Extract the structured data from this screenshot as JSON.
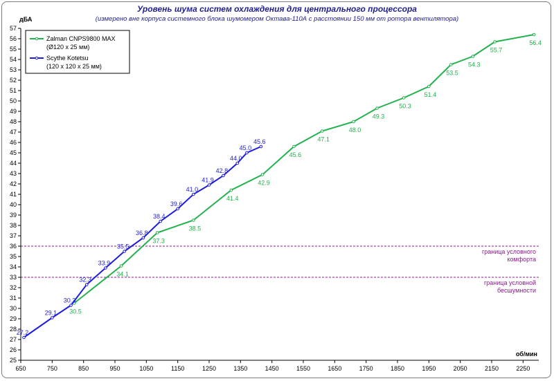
{
  "chart_data": {
    "type": "line",
    "title": "Уровень шума систем охлаждения для центрального процессора",
    "subtitle": "(измерено вне корпуса системного блока шумомером Октава-110А с расстоянии 150 мм от ротора вентилятора)",
    "xlabel": "об/мин",
    "ylabel": "дБА",
    "xlim": [
      650,
      2300
    ],
    "ylim": [
      25,
      57
    ],
    "xticks": [
      650,
      750,
      850,
      950,
      1050,
      1150,
      1250,
      1350,
      1450,
      1550,
      1650,
      1750,
      1850,
      1950,
      2050,
      2150,
      2250
    ],
    "yticks": [
      25,
      26,
      27,
      28,
      29,
      30,
      31,
      32,
      33,
      34,
      35,
      36,
      37,
      38,
      39,
      40,
      41,
      42,
      43,
      44,
      45,
      46,
      47,
      48,
      49,
      50,
      51,
      52,
      53,
      54,
      55,
      56,
      57
    ],
    "grid": false,
    "legend_position": "top-left",
    "series": [
      {
        "name": "Zalman CNPS9800 MAX",
        "name_line2": "(Ø120 x 25 мм)",
        "color": "#22b14c",
        "x": [
          820,
          970,
          1085,
          1200,
          1320,
          1420,
          1520,
          1610,
          1710,
          1785,
          1870,
          1950,
          2020,
          2090,
          2160,
          2285
        ],
        "y": [
          30.5,
          34.1,
          37.3,
          38.5,
          41.4,
          42.9,
          45.6,
          47.1,
          48.0,
          49.3,
          50.3,
          51.4,
          53.5,
          54.3,
          55.7,
          56.4
        ],
        "labels": [
          "30.5",
          "34.1",
          "37.3",
          "38.5",
          "41.4",
          "42.9",
          "45.6",
          "47.1",
          "48.0",
          "49.3",
          "50.3",
          "51.4",
          "53.5",
          "54.3",
          "55.7",
          "56.4"
        ]
      },
      {
        "name": "Scythe Kotetsu",
        "name_line2": "(120 x 120 x 25 мм)",
        "color": "#1c1cdc",
        "x": [
          660,
          750,
          810,
          860,
          920,
          980,
          1040,
          1095,
          1150,
          1200,
          1250,
          1295,
          1340,
          1370,
          1415
        ],
        "y": [
          27.2,
          29.1,
          30.3,
          32.3,
          33.9,
          35.5,
          36.8,
          38.4,
          39.6,
          41.0,
          41.9,
          42.8,
          44.0,
          45.0,
          45.6
        ],
        "labels": [
          "27.2",
          "29.1",
          "30.3",
          "32.3",
          "33.9",
          "35.5",
          "36.8",
          "38.4",
          "39.6",
          "41.0",
          "41.9",
          "42.8",
          "44.0",
          "45.0",
          "45.6"
        ]
      }
    ],
    "reference_lines": [
      {
        "y": 36,
        "label_line1": "граница  условного",
        "label_line2": "комфорта",
        "color": "#8b1a8b"
      },
      {
        "y": 33,
        "label_line1": "граница  условной",
        "label_line2": "бесшумности",
        "color": "#8b1a8b"
      }
    ]
  }
}
